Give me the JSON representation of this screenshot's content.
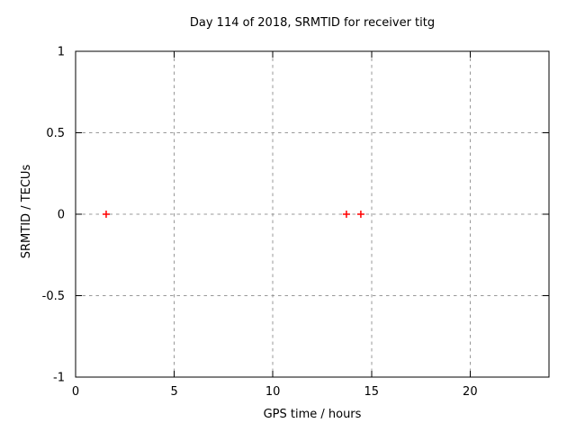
{
  "chart_data": {
    "type": "scatter",
    "title": "Day 114 of 2018, SRMTID for receiver titg",
    "xlabel": "GPS time / hours",
    "ylabel": "SRMTID / TECUs",
    "xlim": [
      0,
      24
    ],
    "ylim": [
      -1,
      1
    ],
    "xticks": [
      0,
      5,
      10,
      15,
      20
    ],
    "xtick_labels": [
      "0",
      "5",
      "10",
      "15",
      "20"
    ],
    "yticks": [
      -1,
      -0.5,
      0,
      0.5,
      1
    ],
    "ytick_labels": [
      "-1",
      "-0.5",
      "0",
      "0.5",
      "1"
    ],
    "grid": "dashed",
    "legend": "none",
    "series": [
      {
        "name": "SRMTID",
        "marker": "plus",
        "marker_color": "#ff0000",
        "points": [
          {
            "x": 1.55,
            "y": 0
          },
          {
            "x": 13.73,
            "y": 0
          },
          {
            "x": 14.46,
            "y": 0
          }
        ]
      }
    ],
    "colors": {
      "background": "#ffffff",
      "border": "#000000",
      "grid": "#999999",
      "text": "#000000"
    }
  }
}
